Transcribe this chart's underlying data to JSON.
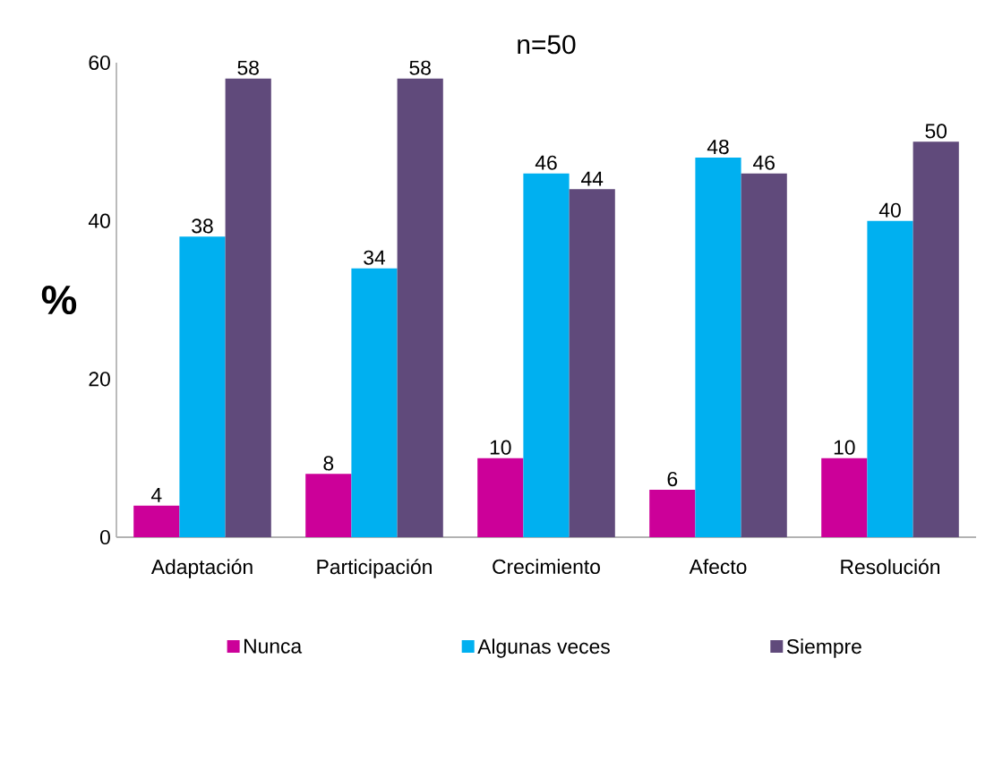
{
  "chart_data": {
    "type": "bar",
    "title": "n=50",
    "ylabel": "%",
    "categories": [
      "Adaptación",
      "Participación",
      "Crecimiento",
      "Afecto",
      "Resolución"
    ],
    "series": [
      {
        "name": "Nunca",
        "color": "#cc0099",
        "values": [
          4,
          8,
          10,
          6,
          10
        ]
      },
      {
        "name": "Algunas veces",
        "color": "#00b0f0",
        "values": [
          38,
          34,
          46,
          48,
          40
        ]
      },
      {
        "name": "Siempre",
        "color": "#604a7b",
        "values": [
          58,
          58,
          44,
          46,
          50
        ]
      }
    ],
    "ylim": [
      0,
      60
    ],
    "yticks": [
      0,
      20,
      40,
      60
    ],
    "data_labels": true,
    "legend": "bottom",
    "grid": false
  }
}
